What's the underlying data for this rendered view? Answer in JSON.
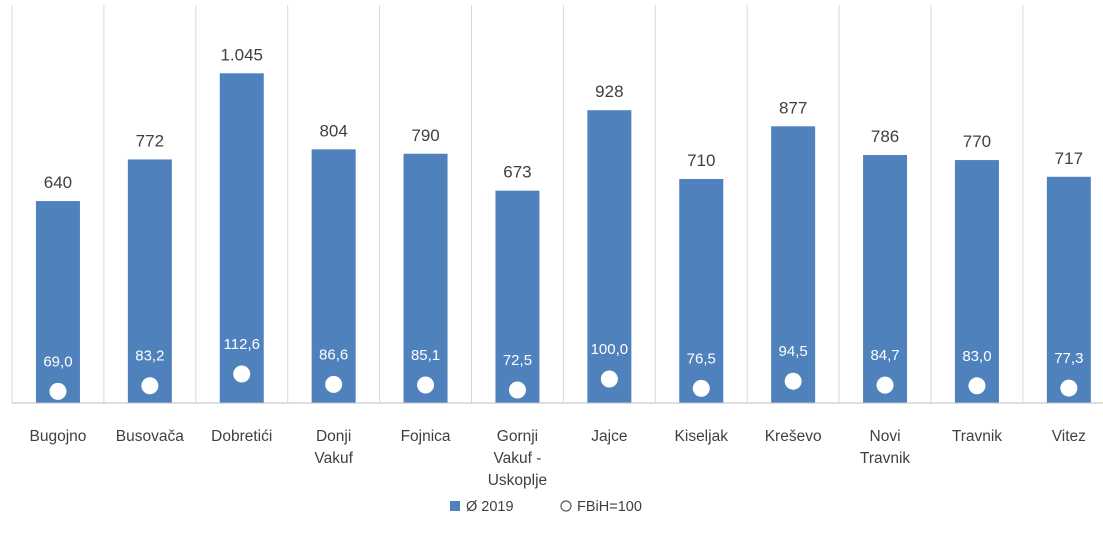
{
  "chart_data": {
    "type": "bar",
    "categories": [
      [
        "Bugojno"
      ],
      [
        "Busovača"
      ],
      [
        "Dobretići"
      ],
      [
        "Donji",
        "Vakuf"
      ],
      [
        "Fojnica"
      ],
      [
        "Gornji",
        "Vakuf -",
        "Uskoplje"
      ],
      [
        "Jajce"
      ],
      [
        "Kiseljak"
      ],
      [
        "Kreševo"
      ],
      [
        "Novi",
        "Travnik"
      ],
      [
        "Travnik"
      ],
      [
        "Vitez"
      ]
    ],
    "series": [
      {
        "name": "Ø 2019",
        "values": [
          640,
          772,
          1045,
          804,
          790,
          673,
          928,
          710,
          877,
          786,
          770,
          717
        ],
        "labels": [
          "640",
          "772",
          "1.045",
          "804",
          "790",
          "673",
          "928",
          "710",
          "877",
          "786",
          "770",
          "717"
        ],
        "color": "#4f81bd"
      },
      {
        "name": "FBiH=100",
        "values": [
          69.0,
          83.2,
          112.6,
          86.6,
          85.1,
          72.5,
          100.0,
          76.5,
          94.5,
          84.7,
          83.0,
          77.3
        ],
        "labels": [
          "69,0",
          "83,2",
          "112,6",
          "86,6",
          "85,1",
          "72,5",
          "100,0",
          "76,5",
          "94,5",
          "84,7",
          "83,0",
          "77,3"
        ],
        "marker": "circle",
        "color": "#ffffff"
      }
    ],
    "ylim": [
      0,
      1100
    ],
    "title": "",
    "xlabel": "",
    "ylabel": "",
    "grid": "vertical category separators",
    "legend": "bottom-center"
  }
}
